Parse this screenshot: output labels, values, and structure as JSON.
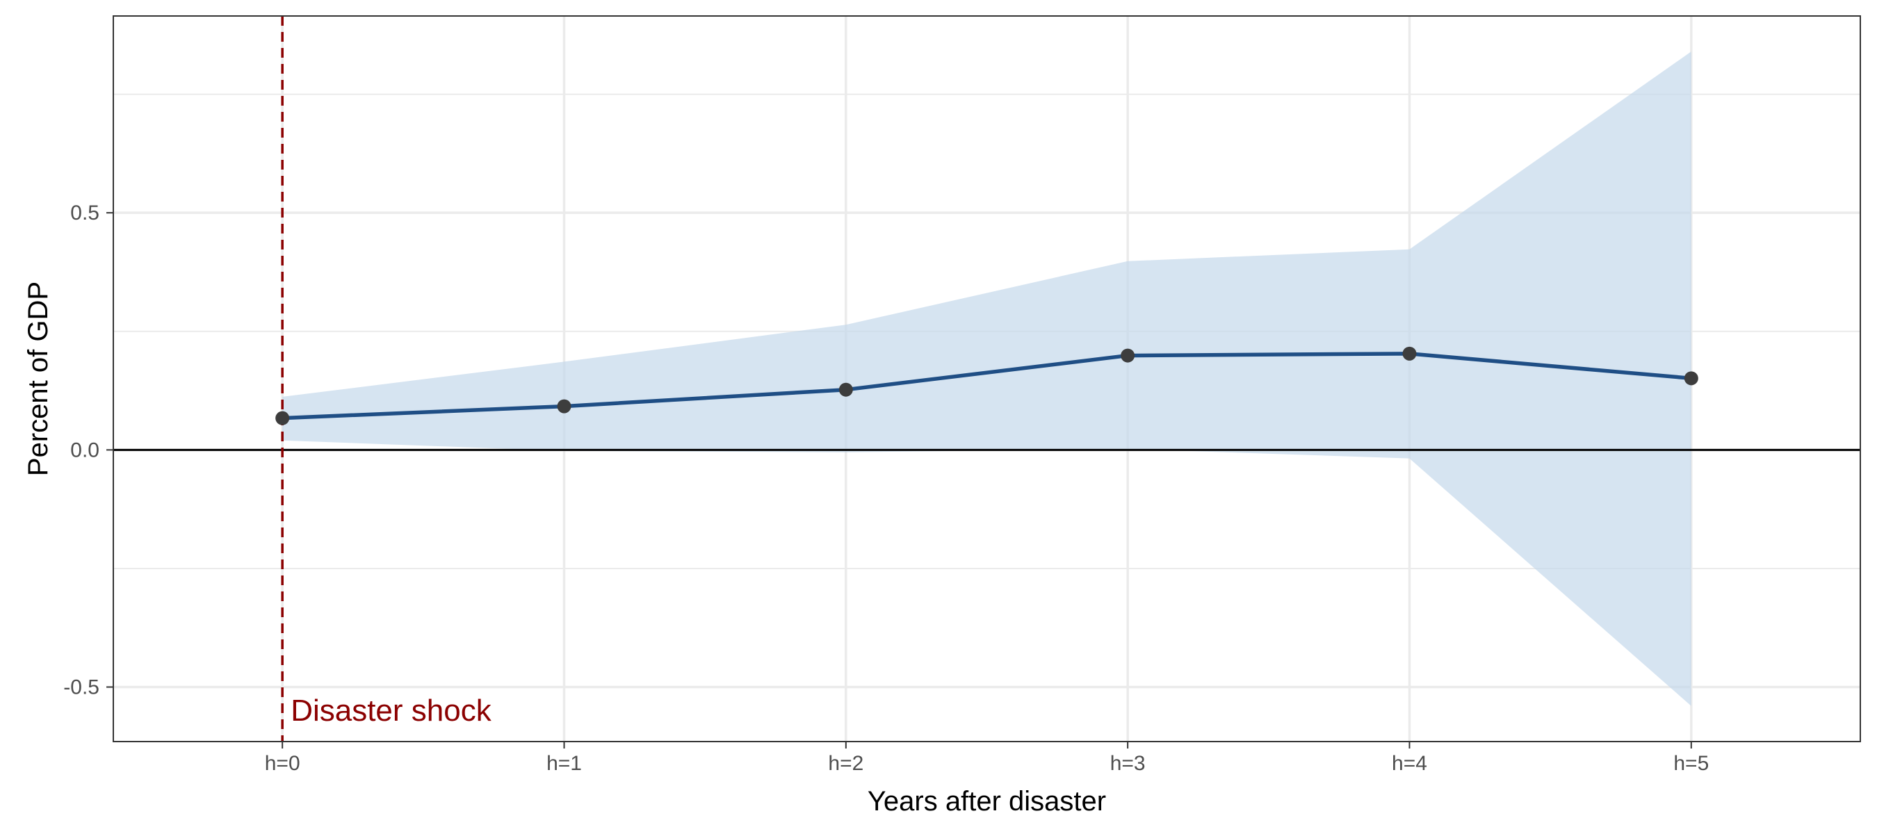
{
  "chart_data": {
    "type": "line",
    "title": "",
    "xlabel": "Years after disaster",
    "ylabel": "Percent of GDP",
    "categories": [
      "h=0",
      "h=1",
      "h=2",
      "h=3",
      "h=4",
      "h=5"
    ],
    "series": [
      {
        "values": [
          0.067,
          0.092,
          0.127,
          0.199,
          0.203,
          0.151
        ],
        "ci_lower": [
          0.02,
          -0.002,
          -0.005,
          0.002,
          -0.018,
          -0.54
        ],
        "ci_upper": [
          0.112,
          0.186,
          0.264,
          0.398,
          0.423,
          0.84
        ],
        "color": "#1f4e85"
      }
    ],
    "xlim": [
      -0.6,
      5.6
    ],
    "ylim": [
      -0.615,
      0.915
    ],
    "yticks": [
      -0.5,
      0.0,
      0.5
    ],
    "ytick_labels": [
      "-0.5",
      "0.0",
      "0.5"
    ],
    "minor_yticks": [
      -0.25,
      0.25,
      0.75
    ],
    "grid": true,
    "hline": 0,
    "vline": {
      "x": 0,
      "label": "Disaster shock",
      "color": "#8b0000"
    },
    "colors": {
      "ribbon": "#c4d9eb",
      "line": "#1f4e85",
      "points": "#3d3d3d",
      "zero_line": "#000000",
      "grid": "#ebebeb",
      "annotation": "#8b0000"
    }
  }
}
